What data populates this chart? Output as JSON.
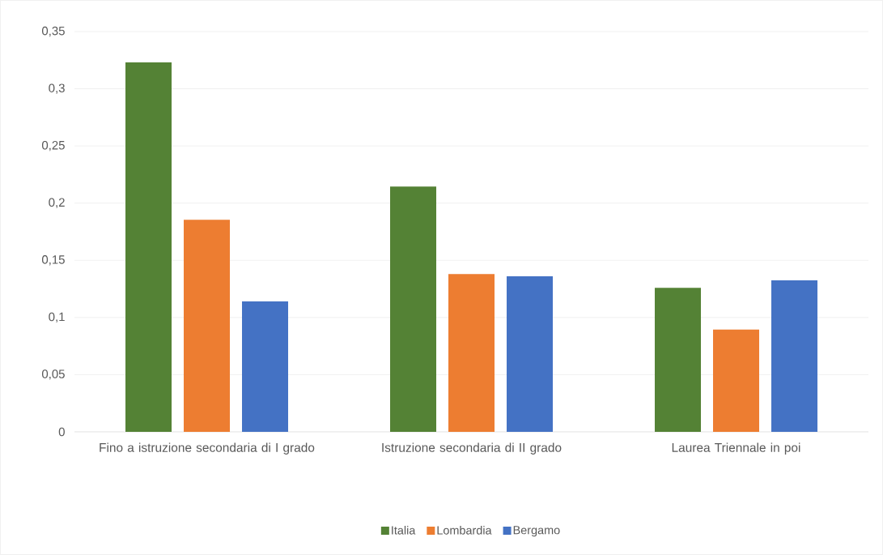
{
  "chart_data": {
    "type": "bar",
    "categories": [
      "Fino a istruzione secondaria di I grado",
      "Istruzione secondaria di II grado",
      "Laurea Triennale in poi"
    ],
    "series": [
      {
        "name": "Italia",
        "color": "#548235",
        "values": [
          0.323,
          0.2145,
          0.126
        ]
      },
      {
        "name": "Lombardia",
        "color": "#ed7d31",
        "values": [
          0.1855,
          0.138,
          0.0895
        ]
      },
      {
        "name": "Bergamo",
        "color": "#4472c4",
        "values": [
          0.114,
          0.136,
          0.1325
        ]
      }
    ],
    "ylim": [
      0,
      0.35
    ],
    "yticks": [
      0,
      {
        "value": 0.05,
        "label": "0,05"
      },
      {
        "value": 0.1,
        "label": "0,1"
      },
      {
        "value": 0.15,
        "label": "0,15"
      },
      {
        "value": 0.2,
        "label": "0,2"
      },
      {
        "value": 0.25,
        "label": "0,25"
      },
      {
        "value": 0.3,
        "label": "0,3"
      },
      {
        "value": 0.35,
        "label": "0,35"
      }
    ],
    "grid": "y",
    "legend": "bottom"
  }
}
